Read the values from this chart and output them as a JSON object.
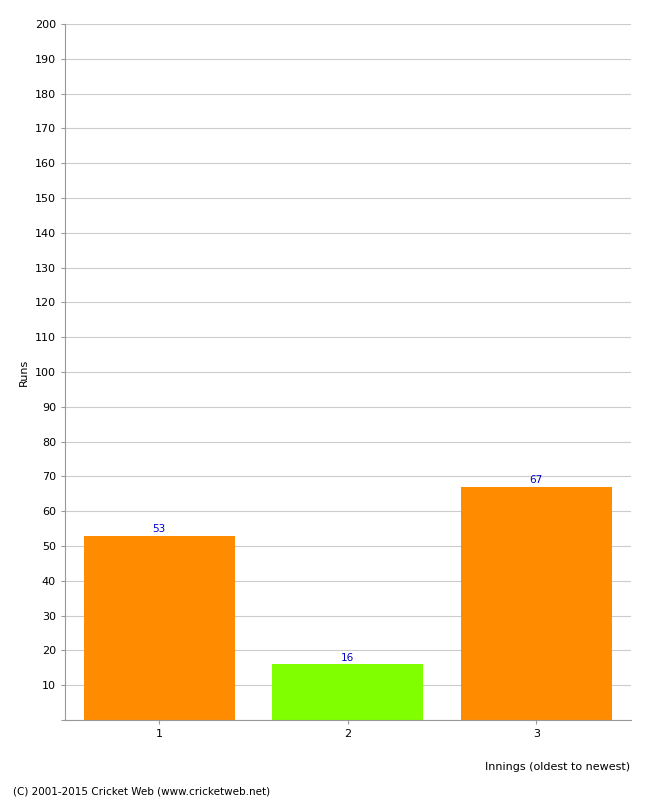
{
  "categories": [
    "1",
    "2",
    "3"
  ],
  "values": [
    53,
    16,
    67
  ],
  "bar_colors": [
    "#ff8c00",
    "#7fff00",
    "#ff8c00"
  ],
  "ylabel": "Runs",
  "xlabel": "Innings (oldest to newest)",
  "ylim": [
    0,
    200
  ],
  "yticks": [
    0,
    10,
    20,
    30,
    40,
    50,
    60,
    70,
    80,
    90,
    100,
    110,
    120,
    130,
    140,
    150,
    160,
    170,
    180,
    190,
    200
  ],
  "annotation_color": "#0000cc",
  "annotation_fontsize": 7.5,
  "axis_label_fontsize": 8,
  "tick_fontsize": 8,
  "background_color": "#ffffff",
  "grid_color": "#cccccc",
  "footer_text": "(C) 2001-2015 Cricket Web (www.cricketweb.net)",
  "footer_fontsize": 7.5
}
